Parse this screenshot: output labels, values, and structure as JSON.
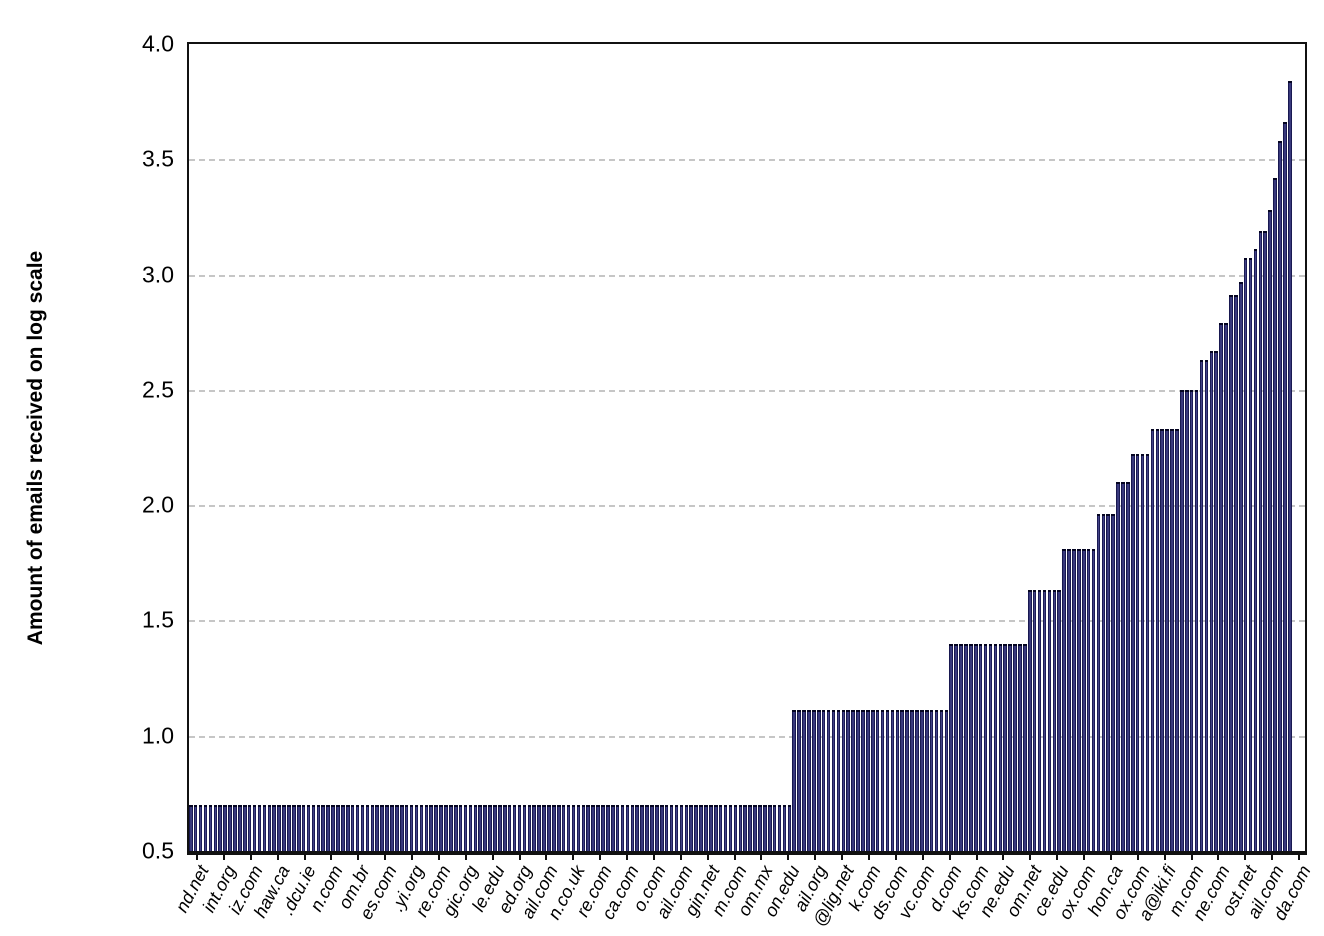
{
  "chart_data": {
    "type": "bar",
    "title": "",
    "xlabel": "",
    "ylabel": "Amount of emails received on log scale",
    "ylim": [
      0.5,
      4.0
    ],
    "y_tick_labels": [
      "4.0",
      "3.5",
      "3.0",
      "2.5",
      "2.0",
      "1.5",
      "1.0",
      "0.5"
    ],
    "grid": "horizontal dashed lines every 0.5 units",
    "legend": "none",
    "num_bars": 224,
    "bar_values_note": "run-length encoded; bars sorted ascending left to right, heights read on log scale axis",
    "value_runs": [
      {
        "value": 0.7,
        "count": 123
      },
      {
        "value": 1.11,
        "count": 32
      },
      {
        "value": 1.4,
        "count": 16
      },
      {
        "value": 1.63,
        "count": 7
      },
      {
        "value": 1.81,
        "count": 7
      },
      {
        "value": 1.96,
        "count": 4
      },
      {
        "value": 2.1,
        "count": 3
      },
      {
        "value": 2.22,
        "count": 4
      },
      {
        "value": 2.33,
        "count": 6
      },
      {
        "value": 2.5,
        "count": 4
      },
      {
        "value": 2.63,
        "count": 2
      },
      {
        "value": 2.67,
        "count": 2
      },
      {
        "value": 2.79,
        "count": 2
      },
      {
        "value": 2.91,
        "count": 2
      },
      {
        "value": 2.97,
        "count": 1
      },
      {
        "value": 3.07,
        "count": 2
      },
      {
        "value": 3.11,
        "count": 1
      },
      {
        "value": 3.19,
        "count": 2
      },
      {
        "value": 3.28,
        "count": 1
      },
      {
        "value": 3.42,
        "count": 1
      },
      {
        "value": 3.58,
        "count": 1
      },
      {
        "value": 3.66,
        "count": 1
      },
      {
        "value": 3.84,
        "count": 1
      }
    ],
    "x_tick_labels_visible": [
      "nd.net",
      "int.org",
      "iz.com",
      "haw.ca",
      ".dcu.ie",
      "n.com",
      "om.br",
      "es.com",
      ".yi.org",
      "re.com",
      "gic.org",
      "le.edu",
      "ed.org",
      "ail.com",
      "n.co.uk",
      "re.com",
      "ca.com",
      "o.com",
      "ail.com",
      "gin.net",
      "m.com",
      "om.mx",
      "on.edu",
      "ail.org",
      "@lig.net",
      "k.com",
      "ds.com",
      "vc.com",
      "d.com",
      "ks.com",
      "ne.edu",
      "om.net",
      "ce.edu",
      "ox.com",
      "hon.ca",
      "ox.com",
      "a@iki.fi",
      "m.com",
      "ne.com",
      "ost.net",
      "ail.com",
      "da.com"
    ],
    "x_tick_labels_note": "labels rotated ~62 deg and clipped at the bottom image edge; only domain endings visible",
    "colors": {
      "bar_fill": "#262668",
      "bar_edge": "#050522",
      "bar_highlight": "#55559b",
      "gridline": "#c6c6c6",
      "axis": "#111111",
      "background": "#ffffff"
    }
  }
}
